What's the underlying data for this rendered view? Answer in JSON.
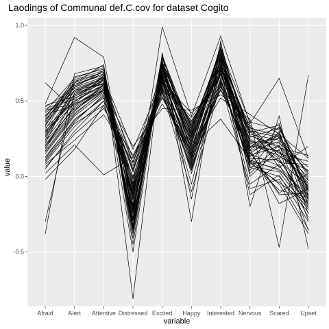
{
  "chart_data": {
    "type": "line",
    "title": "Laodings of Communal def.C.cov for dataset Cogito",
    "xlabel": "variable",
    "ylabel": "value",
    "categories": [
      "Afraid",
      "Alert",
      "Attentive",
      "Distressed",
      "Excited",
      "Happy",
      "Interested",
      "Nervous",
      "Scared",
      "Upset"
    ],
    "y_ticks": [
      -0.5,
      0.0,
      0.5,
      1.0
    ],
    "y_tick_labels": [
      "-0.5",
      "0.0",
      "0.5",
      "1.0"
    ],
    "ylim": [
      -0.86,
      1.05
    ],
    "grid": true,
    "legend": "none",
    "colors": {
      "panel": "#ebebeb",
      "grid_major": "#ffffff",
      "grid_minor": "#f5f5f5",
      "line": "#000000"
    },
    "series": [
      {
        "values": [
          0.48,
          0.92,
          0.79,
          -0.28,
          0.99,
          0.4,
          0.93,
          0.35,
          0.65,
          0.12
        ]
      },
      {
        "values": [
          -0.38,
          0.68,
          0.73,
          -0.81,
          0.82,
          -0.3,
          0.9,
          -0.2,
          0.4,
          -0.48
        ]
      },
      {
        "values": [
          0.62,
          0.44,
          0.57,
          0.05,
          0.62,
          0.2,
          0.52,
          0.38,
          -0.47,
          0.67
        ]
      },
      {
        "values": [
          0.29,
          0.48,
          0.65,
          0.09,
          0.71,
          0.28,
          0.77,
          0.22,
          0.16,
          -0.05
        ]
      },
      {
        "values": [
          0.18,
          0.52,
          0.6,
          -0.12,
          0.66,
          0.13,
          0.7,
          0.1,
          0.05,
          -0.18
        ]
      },
      {
        "values": [
          0.4,
          0.59,
          0.7,
          -0.19,
          0.76,
          0.31,
          0.82,
          0.28,
          0.24,
          0.03
        ]
      },
      {
        "values": [
          0.1,
          0.35,
          0.47,
          -0.02,
          0.55,
          0.05,
          0.6,
          0.14,
          0.2,
          -0.1
        ]
      },
      {
        "values": [
          0.22,
          0.61,
          0.68,
          -0.35,
          0.74,
          0.21,
          0.85,
          0.04,
          0.3,
          -0.25
        ]
      },
      {
        "values": [
          0.47,
          0.53,
          0.62,
          0.12,
          0.6,
          0.39,
          0.66,
          0.3,
          0.09,
          0.08
        ]
      },
      {
        "values": [
          0.05,
          0.3,
          0.5,
          -0.22,
          0.63,
          -0.05,
          0.71,
          -0.12,
          0.01,
          -0.3
        ]
      },
      {
        "values": [
          0.33,
          0.66,
          0.71,
          -0.41,
          0.81,
          0.15,
          0.88,
          0.19,
          0.35,
          -0.14
        ]
      },
      {
        "values": [
          0.15,
          0.4,
          0.55,
          0.2,
          0.45,
          0.44,
          0.54,
          0.41,
          0.28,
          0.12
        ]
      },
      {
        "values": [
          0.26,
          0.57,
          0.64,
          -0.07,
          0.69,
          0.26,
          0.73,
          0.16,
          -0.11,
          0.02
        ]
      },
      {
        "values": [
          0.41,
          0.47,
          0.59,
          -0.14,
          0.58,
          0.09,
          0.63,
          0.25,
          0.12,
          -0.2
        ]
      },
      {
        "values": [
          -0.3,
          0.55,
          0.66,
          -0.5,
          0.77,
          -0.15,
          0.8,
          0.0,
          0.18,
          -0.36
        ]
      },
      {
        "values": [
          0.02,
          0.21,
          0.01,
          0.13,
          0.48,
          0.2,
          0.38,
          0.11,
          -0.05,
          -0.38
        ]
      },
      {
        "values": [
          0.36,
          0.63,
          0.69,
          -0.25,
          0.73,
          0.34,
          0.79,
          0.32,
          0.27,
          -0.08
        ]
      },
      {
        "values": [
          0.2,
          0.44,
          0.58,
          0.03,
          0.6,
          0.12,
          0.68,
          0.21,
          0.14,
          -0.02
        ]
      },
      {
        "values": [
          0.45,
          0.51,
          0.66,
          -0.3,
          0.7,
          0.24,
          0.76,
          0.09,
          0.33,
          -0.12
        ]
      },
      {
        "values": [
          0.12,
          0.38,
          0.52,
          -0.1,
          0.64,
          0.02,
          0.69,
          -0.05,
          0.08,
          -0.27
        ]
      },
      {
        "values": [
          0.31,
          0.62,
          0.74,
          -0.45,
          0.79,
          0.27,
          0.86,
          0.23,
          0.22,
          0.06
        ]
      },
      {
        "values": [
          0.08,
          0.24,
          0.41,
          0.1,
          0.52,
          0.16,
          0.57,
          0.18,
          -0.18,
          -0.08
        ]
      },
      {
        "values": [
          0.38,
          0.57,
          0.61,
          -0.04,
          0.66,
          0.35,
          0.72,
          0.27,
          0.19,
          0.14
        ]
      },
      {
        "values": [
          0.24,
          0.49,
          0.67,
          -0.33,
          0.72,
          0.19,
          0.78,
          0.13,
          0.26,
          -0.16
        ]
      },
      {
        "values": [
          -0.02,
          0.18,
          0.47,
          0.0,
          0.57,
          -0.1,
          0.62,
          -0.08,
          -0.02,
          -0.35
        ]
      },
      {
        "values": [
          0.43,
          0.65,
          0.72,
          -0.2,
          0.8,
          0.3,
          0.84,
          0.36,
          0.31,
          0.0
        ]
      },
      {
        "values": [
          0.17,
          0.42,
          0.56,
          -0.08,
          0.62,
          0.1,
          0.65,
          0.07,
          0.03,
          -0.22
        ]
      },
      {
        "values": [
          0.28,
          0.54,
          0.63,
          -0.16,
          0.68,
          0.22,
          0.74,
          0.2,
          0.17,
          -0.04
        ]
      },
      {
        "values": [
          0.35,
          0.6,
          0.68,
          -0.38,
          0.75,
          0.28,
          0.81,
          0.15,
          0.29,
          -0.19
        ]
      },
      {
        "values": [
          0.09,
          0.33,
          0.5,
          0.07,
          0.56,
          0.07,
          0.61,
          0.1,
          -0.09,
          -0.14
        ]
      },
      {
        "values": [
          0.46,
          0.58,
          0.65,
          0.18,
          0.63,
          0.42,
          0.59,
          0.33,
          0.06,
          0.2
        ]
      },
      {
        "values": [
          0.21,
          0.46,
          0.59,
          -0.27,
          0.67,
          0.14,
          0.75,
          0.02,
          0.21,
          -0.29
        ]
      },
      {
        "values": [
          0.3,
          0.5,
          0.6,
          -0.11,
          0.65,
          0.25,
          0.71,
          0.24,
          0.1,
          -0.06
        ]
      },
      {
        "values": [
          0.39,
          0.64,
          0.7,
          -0.32,
          0.78,
          0.32,
          0.83,
          0.29,
          0.34,
          -0.1
        ]
      },
      {
        "values": [
          0.13,
          0.37,
          0.53,
          -0.05,
          0.59,
          0.04,
          0.64,
          0.06,
          0.0,
          -0.24
        ]
      },
      {
        "values": [
          0.25,
          0.55,
          0.62,
          -0.21,
          0.7,
          0.18,
          0.77,
          0.17,
          0.23,
          -0.13
        ]
      },
      {
        "values": [
          0.44,
          0.48,
          0.57,
          0.09,
          0.61,
          0.37,
          0.67,
          0.31,
          0.15,
          0.1
        ]
      },
      {
        "values": [
          0.19,
          0.43,
          0.61,
          -0.15,
          0.66,
          0.11,
          0.72,
          0.12,
          0.11,
          -0.17
        ]
      },
      {
        "values": [
          0.34,
          0.59,
          0.66,
          -0.24,
          0.72,
          0.26,
          0.78,
          0.22,
          0.25,
          -0.03
        ]
      },
      {
        "values": [
          0.06,
          0.28,
          0.45,
          0.14,
          0.53,
          0.13,
          0.58,
          0.16,
          -0.12,
          -0.11
        ]
      },
      {
        "values": [
          0.37,
          0.62,
          0.69,
          -0.36,
          0.76,
          0.29,
          0.85,
          0.26,
          0.32,
          -0.09
        ]
      },
      {
        "values": [
          0.23,
          0.45,
          0.58,
          -0.01,
          0.64,
          0.17,
          0.69,
          0.15,
          0.07,
          -0.15
        ]
      },
      {
        "values": [
          0.42,
          0.56,
          0.63,
          -0.09,
          0.67,
          0.36,
          0.7,
          0.34,
          0.13,
          0.04
        ]
      },
      {
        "values": [
          0.16,
          0.41,
          0.57,
          -0.18,
          0.63,
          0.08,
          0.73,
          0.08,
          0.12,
          -0.21
        ]
      },
      {
        "values": [
          0.27,
          0.53,
          0.64,
          -0.29,
          0.71,
          0.23,
          0.8,
          0.18,
          0.27,
          -0.07
        ]
      },
      {
        "values": [
          0.32,
          0.5,
          0.61,
          -0.13,
          0.68,
          0.27,
          0.74,
          0.27,
          0.2,
          -0.01
        ]
      },
      {
        "values": [
          0.11,
          0.36,
          0.54,
          0.04,
          0.58,
          0.06,
          0.63,
          0.09,
          -0.04,
          -0.18
        ]
      },
      {
        "values": [
          0.4,
          0.61,
          0.67,
          -0.23,
          0.74,
          0.33,
          0.79,
          0.3,
          0.26,
          0.02
        ]
      },
      {
        "values": [
          0.2,
          0.47,
          0.6,
          -0.06,
          0.65,
          0.15,
          0.7,
          0.11,
          0.04,
          -0.12
        ]
      },
      {
        "values": [
          0.29,
          0.57,
          0.65,
          -0.34,
          0.73,
          0.21,
          0.82,
          0.19,
          0.28,
          -0.15
        ]
      }
    ]
  }
}
